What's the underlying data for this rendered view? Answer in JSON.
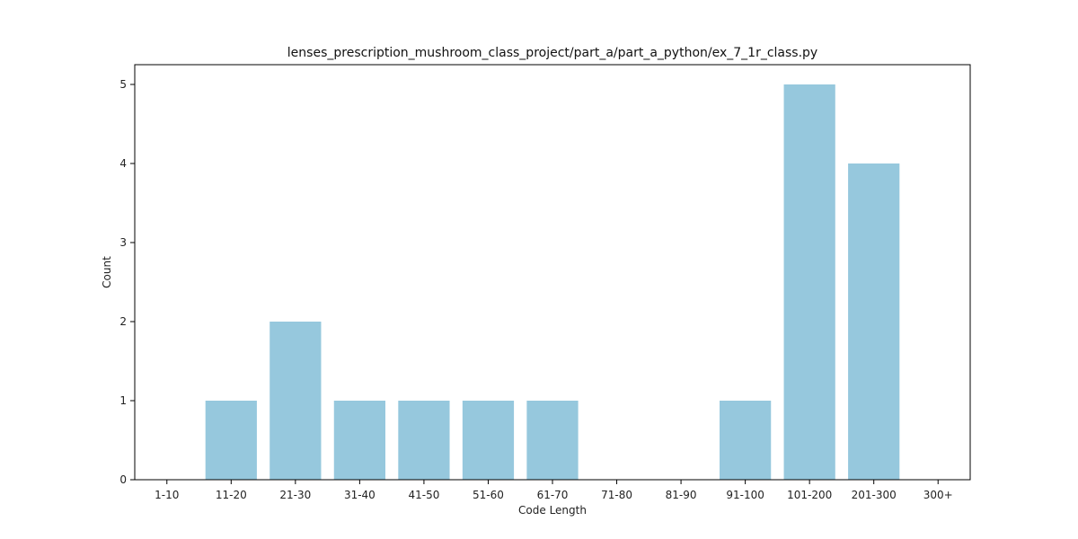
{
  "chart_data": {
    "type": "bar",
    "title": "lenses_prescription_mushroom_class_project/part_a/part_a_python/ex_7_1r_class.py",
    "xlabel": "Code Length",
    "ylabel": "Count",
    "categories": [
      "1-10",
      "11-20",
      "21-30",
      "31-40",
      "41-50",
      "51-60",
      "61-70",
      "71-80",
      "81-90",
      "91-100",
      "101-200",
      "201-300",
      "300+"
    ],
    "values": [
      0,
      1,
      2,
      1,
      1,
      1,
      1,
      0,
      0,
      1,
      5,
      4,
      0
    ],
    "ylim": [
      0,
      5.25
    ],
    "yticks": [
      0,
      1,
      2,
      3,
      4,
      5
    ],
    "grid": false,
    "bar_color": "#96c8dd"
  }
}
